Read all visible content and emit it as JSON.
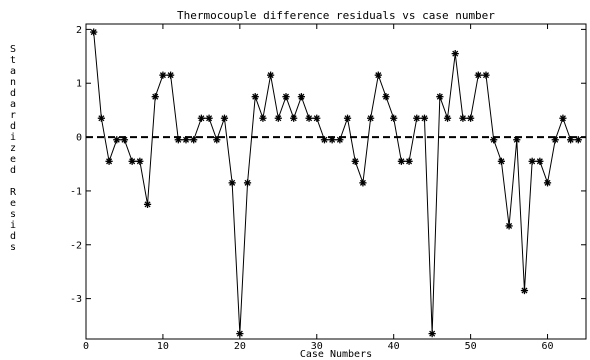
{
  "chart_data": {
    "type": "line",
    "title": "Thermocouple difference residuals vs case number",
    "xlabel": "Case Numbers",
    "ylabel": "Standardized Resids",
    "xlim": [
      0,
      65
    ],
    "ylim": [
      -3.75,
      2.1
    ],
    "xticks": [
      0,
      10,
      20,
      30,
      40,
      50,
      60
    ],
    "yticks": [
      -3,
      -2,
      -1,
      0,
      1,
      2
    ],
    "grid": false,
    "reference_line": {
      "y": 0,
      "style": "dashed"
    },
    "series": [
      {
        "marker": "asterisk",
        "x": [
          1,
          2,
          3,
          4,
          5,
          6,
          7,
          8,
          9,
          10,
          11,
          12,
          13,
          14,
          15,
          16,
          17,
          18,
          19,
          20,
          21,
          22,
          23,
          24,
          25,
          26,
          27,
          28,
          29,
          30,
          31,
          32,
          33,
          34,
          35,
          36,
          37,
          38,
          39,
          40,
          41,
          42,
          43,
          44,
          45,
          46,
          47,
          48,
          49,
          50,
          51,
          52,
          53,
          54,
          55,
          56,
          57,
          58,
          59,
          60,
          61,
          62,
          63,
          64
        ],
        "y": [
          1.95,
          0.35,
          -0.45,
          -0.05,
          -0.05,
          -0.45,
          -0.45,
          -1.25,
          0.75,
          1.15,
          1.15,
          -0.05,
          -0.05,
          -0.05,
          0.35,
          0.35,
          -0.05,
          0.35,
          -0.85,
          -3.65,
          -0.85,
          0.75,
          0.35,
          1.15,
          0.35,
          0.75,
          0.35,
          0.75,
          0.35,
          0.35,
          -0.05,
          -0.05,
          -0.05,
          0.35,
          -0.45,
          -0.85,
          0.35,
          1.15,
          0.75,
          0.35,
          -0.45,
          -0.45,
          0.35,
          0.35,
          -3.65,
          0.75,
          0.35,
          1.55,
          0.35,
          0.35,
          1.15,
          1.15,
          -0.05,
          -0.45,
          -1.65,
          -0.05,
          -2.85,
          -0.45,
          -0.45,
          -0.85,
          -0.05,
          0.35,
          -0.05,
          -0.05
        ]
      }
    ]
  }
}
